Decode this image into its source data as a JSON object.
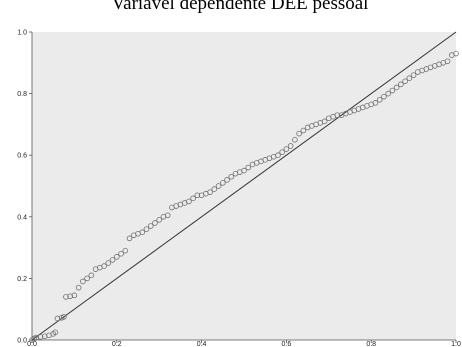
{
  "chart_data": {
    "type": "scatter",
    "title": "Variável dependente DEE pessoal",
    "xlabel": "",
    "ylabel": "",
    "xlim": [
      0.0,
      1.0
    ],
    "ylim": [
      0.0,
      1.0
    ],
    "x_ticks": [
      "0.0",
      "0.2",
      "0.4",
      "0.6",
      "0.8",
      "1.0"
    ],
    "y_ticks": [
      "0.0",
      "0.2",
      "0.4",
      "0.6",
      "0.8",
      "1.0"
    ],
    "grid": false,
    "plot_background": "#ebebeb",
    "marker_color": "#6f6f6f",
    "line_color": "#333333",
    "reference_line": {
      "x": [
        0.0,
        1.0
      ],
      "y": [
        0.0,
        1.0
      ]
    },
    "points": {
      "x": [
        0.0,
        0.005,
        0.01,
        0.02,
        0.03,
        0.04,
        0.05,
        0.055,
        0.06,
        0.07,
        0.075,
        0.08,
        0.09,
        0.1,
        0.11,
        0.12,
        0.13,
        0.14,
        0.15,
        0.16,
        0.17,
        0.18,
        0.19,
        0.2,
        0.21,
        0.22,
        0.23,
        0.24,
        0.25,
        0.26,
        0.27,
        0.28,
        0.29,
        0.3,
        0.31,
        0.32,
        0.33,
        0.34,
        0.35,
        0.36,
        0.37,
        0.38,
        0.39,
        0.4,
        0.41,
        0.42,
        0.43,
        0.44,
        0.45,
        0.46,
        0.47,
        0.48,
        0.49,
        0.5,
        0.51,
        0.52,
        0.53,
        0.54,
        0.55,
        0.56,
        0.57,
        0.58,
        0.59,
        0.6,
        0.61,
        0.62,
        0.63,
        0.64,
        0.65,
        0.66,
        0.67,
        0.68,
        0.69,
        0.7,
        0.71,
        0.72,
        0.73,
        0.74,
        0.75,
        0.76,
        0.77,
        0.78,
        0.79,
        0.8,
        0.81,
        0.82,
        0.83,
        0.84,
        0.85,
        0.86,
        0.87,
        0.88,
        0.89,
        0.9,
        0.91,
        0.92,
        0.93,
        0.94,
        0.95,
        0.96,
        0.97,
        0.98,
        0.99,
        1.0
      ],
      "y": [
        0.0,
        0.005,
        0.008,
        0.01,
        0.012,
        0.015,
        0.02,
        0.025,
        0.07,
        0.072,
        0.075,
        0.14,
        0.142,
        0.145,
        0.17,
        0.19,
        0.2,
        0.21,
        0.23,
        0.235,
        0.24,
        0.25,
        0.26,
        0.27,
        0.28,
        0.29,
        0.33,
        0.34,
        0.345,
        0.35,
        0.36,
        0.37,
        0.38,
        0.39,
        0.4,
        0.405,
        0.43,
        0.435,
        0.44,
        0.445,
        0.45,
        0.46,
        0.47,
        0.47,
        0.475,
        0.48,
        0.49,
        0.5,
        0.51,
        0.52,
        0.53,
        0.54,
        0.545,
        0.55,
        0.56,
        0.57,
        0.575,
        0.58,
        0.585,
        0.59,
        0.595,
        0.6,
        0.61,
        0.62,
        0.63,
        0.65,
        0.67,
        0.68,
        0.69,
        0.695,
        0.7,
        0.705,
        0.71,
        0.72,
        0.725,
        0.73,
        0.73,
        0.735,
        0.74,
        0.745,
        0.75,
        0.755,
        0.76,
        0.765,
        0.77,
        0.78,
        0.79,
        0.8,
        0.81,
        0.82,
        0.83,
        0.84,
        0.85,
        0.86,
        0.87,
        0.875,
        0.88,
        0.885,
        0.89,
        0.895,
        0.9,
        0.905,
        0.925,
        0.93
      ]
    }
  }
}
